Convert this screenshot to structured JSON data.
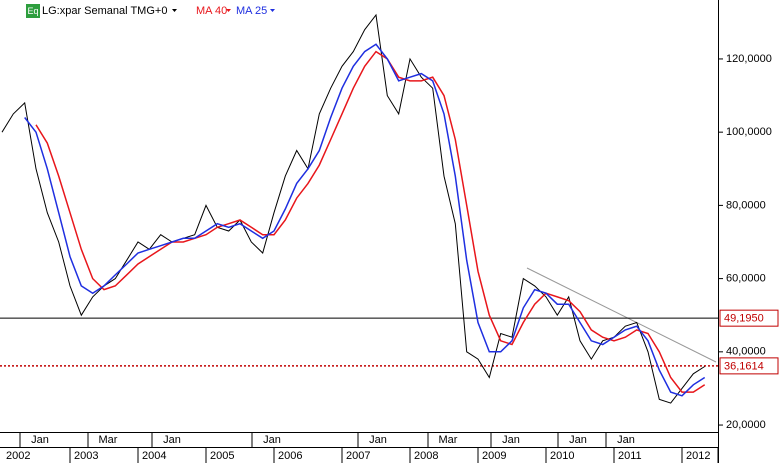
{
  "chart_data": {
    "type": "line",
    "title": "LG:xpar Semanal TMG+0",
    "icon": "Eq",
    "x": [
      "2002-01",
      "2002-03",
      "2002-05",
      "2002-07",
      "2002-09",
      "2002-11",
      "2003-01",
      "2003-03",
      "2003-05",
      "2003-07",
      "2003-09",
      "2003-11",
      "2004-01",
      "2004-03",
      "2004-05",
      "2004-07",
      "2004-09",
      "2004-11",
      "2005-01",
      "2005-03",
      "2005-05",
      "2005-07",
      "2005-09",
      "2005-11",
      "2006-01",
      "2006-03",
      "2006-05",
      "2006-07",
      "2006-09",
      "2006-11",
      "2007-01",
      "2007-03",
      "2007-05",
      "2007-07",
      "2007-09",
      "2007-11",
      "2008-01",
      "2008-03",
      "2008-05",
      "2008-07",
      "2008-09",
      "2008-11",
      "2009-01",
      "2009-03",
      "2009-05",
      "2009-07",
      "2009-09",
      "2009-11",
      "2010-01",
      "2010-03",
      "2010-05",
      "2010-07",
      "2010-09",
      "2010-11",
      "2011-01",
      "2011-03",
      "2011-05",
      "2011-07",
      "2011-09",
      "2011-11",
      "2012-01",
      "2012-03",
      "2012-05"
    ],
    "series": [
      {
        "name": "LG:xpar",
        "color": "#000000",
        "values": [
          100,
          105,
          108,
          90,
          78,
          70,
          58,
          50,
          55,
          58,
          60,
          65,
          70,
          68,
          72,
          70,
          71,
          72,
          80,
          74,
          73,
          76,
          70,
          67,
          78,
          88,
          95,
          90,
          105,
          112,
          118,
          122,
          128,
          132,
          110,
          105,
          120,
          115,
          112,
          88,
          75,
          40,
          38,
          33,
          45,
          44,
          60,
          58,
          55,
          50,
          55,
          43,
          38,
          43,
          44,
          47,
          48,
          40,
          27,
          26,
          30,
          34,
          36
        ]
      },
      {
        "name": "MA 40",
        "color": "#e8161b",
        "values": [
          null,
          null,
          null,
          102,
          97,
          88,
          78,
          68,
          60,
          57,
          58,
          61,
          64,
          66,
          68,
          70,
          70,
          71,
          72,
          74,
          75,
          76,
          74,
          72,
          72,
          76,
          82,
          86,
          91,
          98,
          105,
          112,
          118,
          122,
          120,
          115,
          114,
          114,
          115,
          110,
          98,
          80,
          62,
          50,
          43,
          42,
          48,
          53,
          56,
          55,
          54,
          51,
          46,
          44,
          43,
          44,
          46,
          45,
          40,
          33,
          29,
          29,
          31
        ]
      },
      {
        "name": "MA 25",
        "color": "#1f2fe0",
        "values": [
          null,
          null,
          104,
          100,
          90,
          78,
          66,
          58,
          56,
          58,
          61,
          64,
          67,
          68,
          69,
          70,
          71,
          71,
          73,
          75,
          74,
          75,
          73,
          71,
          73,
          79,
          86,
          90,
          95,
          104,
          112,
          118,
          122,
          124,
          120,
          114,
          115,
          116,
          114,
          105,
          88,
          65,
          48,
          40,
          40,
          43,
          52,
          57,
          56,
          53,
          53,
          48,
          43,
          42,
          44,
          46,
          47,
          43,
          35,
          29,
          28,
          31,
          33
        ]
      }
    ],
    "hlines": [
      {
        "value": 49.195,
        "label": "49,1950",
        "color": "#000000"
      },
      {
        "value": 36.1614,
        "label": "36,1614",
        "color": "#c00000"
      }
    ],
    "ylim": [
      18.1,
      136.1
    ],
    "yticks": [
      {
        "value": 20,
        "label": "20,0000"
      },
      {
        "value": 40,
        "label": "40,0000"
      },
      {
        "value": 60,
        "label": "60,0000"
      },
      {
        "value": 80,
        "label": "80,0000"
      },
      {
        "value": 100,
        "label": "100,0000"
      },
      {
        "value": 120,
        "label": "120,0000"
      }
    ],
    "month_labels": [
      "Jan",
      "Mar",
      "Jan",
      "Jan",
      "Jan",
      "Mar",
      "Jan",
      "Jan",
      "Jan"
    ],
    "year_labels": [
      "2002",
      "2003",
      "2004",
      "2005",
      "2006",
      "2007",
      "2008",
      "2009",
      "2010",
      "2011",
      "2012"
    ]
  }
}
